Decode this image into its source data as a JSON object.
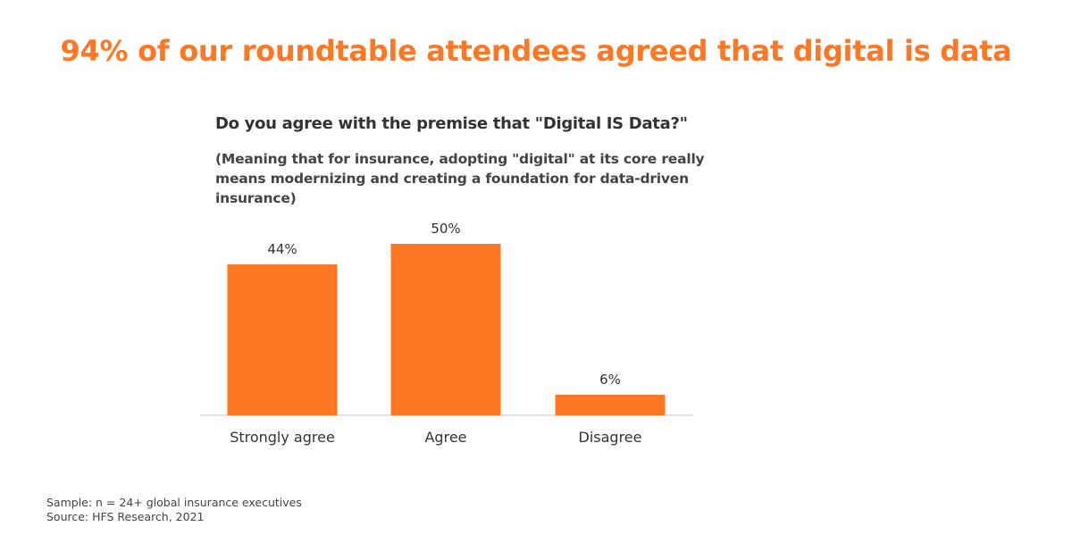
{
  "headline": "94% of our roundtable attendees agreed that digital is data",
  "question": "Do you agree with the premise that \"Digital IS Data?\"",
  "subquestion": "(Meaning that for insurance, adopting \"digital\" at its core really means modernizing and creating a foundation for data-driven insurance)",
  "footnotes": {
    "sample": "Sample: n = 24+ global insurance executives",
    "source": "Source: HFS Research, 2021"
  },
  "colors": {
    "accent": "#FF7722",
    "bar": "#FF7722",
    "text": "#333333",
    "axis": "#d9d9d9"
  },
  "chart_data": {
    "type": "bar",
    "categories": [
      "Strongly agree",
      "Agree",
      "Disagree"
    ],
    "values": [
      44,
      50,
      6
    ],
    "value_labels": [
      "44%",
      "50%",
      "6%"
    ],
    "unit": "%",
    "ylim": [
      0,
      50
    ],
    "grid": false,
    "legend": "none"
  }
}
